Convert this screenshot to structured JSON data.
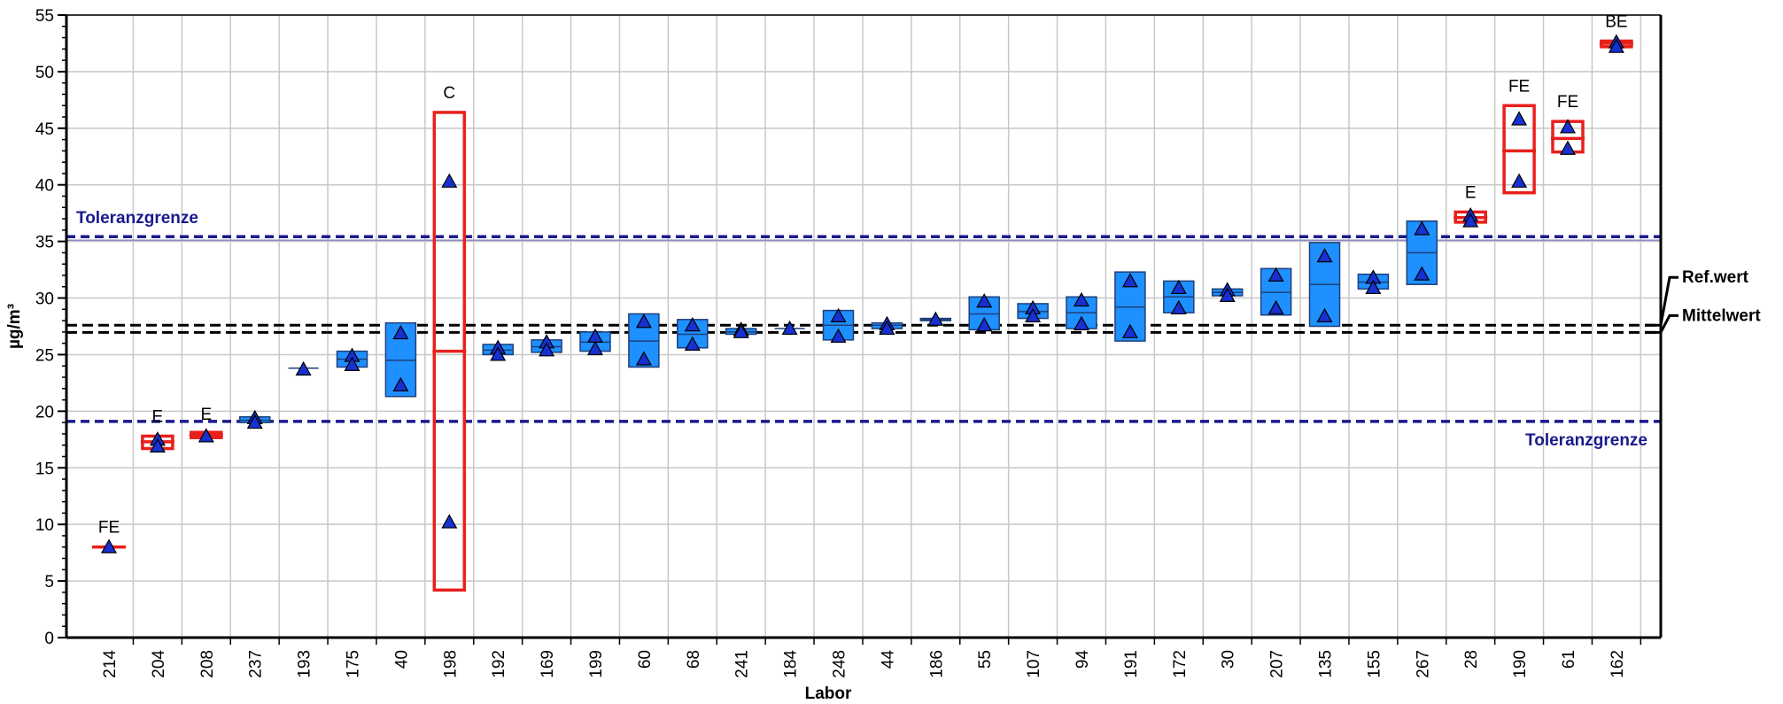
{
  "chart_data": {
    "type": "box",
    "xlabel": "Labor",
    "ylabel": "µg/m³",
    "ylim": [
      0,
      55
    ],
    "yticks": [
      0,
      5,
      10,
      15,
      20,
      25,
      30,
      35,
      40,
      45,
      50,
      55
    ],
    "grid": true,
    "colors": {
      "box_fill": "#1E90FF",
      "box_stroke": "#1F3F7A",
      "flagged": "#E8201C",
      "marker_fill": "#1730D0",
      "tolerance_line": "#1A1A8C",
      "reference_line": "#000000",
      "grid": "#C8C8C8"
    },
    "reference_lines": {
      "ref_wert": {
        "label": "Ref.wert",
        "value": 27.6
      },
      "mittelwert": {
        "label": "Mittelwert",
        "value": 27.2
      },
      "tolerance_upper": {
        "label": "Toleranzgrenze",
        "value": 35.3
      },
      "tolerance_lower": {
        "label": "Toleranzgrenze",
        "value": 19.1
      }
    },
    "labs": [
      {
        "label": "214",
        "low": 8.0,
        "high": 8.0,
        "mid": 8.0,
        "points": [
          8.0
        ],
        "flag": "FE",
        "flagged": true
      },
      {
        "label": "204",
        "low": 16.7,
        "high": 17.8,
        "mid": 17.3,
        "points": [
          17.5,
          16.9
        ],
        "flag": "E",
        "flagged": true
      },
      {
        "label": "208",
        "low": 17.8,
        "high": 18.0,
        "mid": 17.9,
        "points": [
          17.8
        ],
        "flag": "E",
        "flagged": true
      },
      {
        "label": "237",
        "low": 19.0,
        "high": 19.5,
        "mid": 19.2,
        "points": [
          19.4,
          19.0
        ],
        "flag": "",
        "flagged": false
      },
      {
        "label": "193",
        "low": 23.7,
        "high": 23.8,
        "mid": 23.8,
        "points": [
          23.7
        ],
        "flag": "",
        "flagged": false
      },
      {
        "label": "175",
        "low": 23.9,
        "high": 25.3,
        "mid": 24.6,
        "points": [
          24.9,
          24.1
        ],
        "flag": "",
        "flagged": false
      },
      {
        "label": "40",
        "low": 21.3,
        "high": 27.8,
        "mid": 24.5,
        "points": [
          26.9,
          22.3
        ],
        "flag": "",
        "flagged": false
      },
      {
        "label": "198",
        "low": 4.2,
        "high": 46.4,
        "mid": 25.3,
        "points": [
          40.3,
          10.2
        ],
        "flag": "C",
        "flagged": true
      },
      {
        "label": "192",
        "low": 25.0,
        "high": 25.9,
        "mid": 25.4,
        "points": [
          25.6,
          25.0
        ],
        "flag": "",
        "flagged": false
      },
      {
        "label": "169",
        "low": 25.2,
        "high": 26.3,
        "mid": 25.7,
        "points": [
          26.1,
          25.4
        ],
        "flag": "",
        "flagged": false
      },
      {
        "label": "199",
        "low": 25.3,
        "high": 27.0,
        "mid": 26.1,
        "points": [
          26.6,
          25.5
        ],
        "flag": "",
        "flagged": false
      },
      {
        "label": "60",
        "low": 23.9,
        "high": 28.6,
        "mid": 26.2,
        "points": [
          27.9,
          24.6
        ],
        "flag": "",
        "flagged": false
      },
      {
        "label": "68",
        "low": 25.6,
        "high": 28.1,
        "mid": 26.8,
        "points": [
          27.6,
          25.9
        ],
        "flag": "",
        "flagged": false
      },
      {
        "label": "241",
        "low": 26.8,
        "high": 27.3,
        "mid": 27.0,
        "points": [
          27.2,
          27.0
        ],
        "flag": "",
        "flagged": false
      },
      {
        "label": "184",
        "low": 27.3,
        "high": 27.4,
        "mid": 27.3,
        "points": [
          27.3
        ],
        "flag": "",
        "flagged": false
      },
      {
        "label": "248",
        "low": 26.3,
        "high": 28.9,
        "mid": 27.6,
        "points": [
          28.4,
          26.6
        ],
        "flag": "",
        "flagged": false
      },
      {
        "label": "44",
        "low": 27.3,
        "high": 27.8,
        "mid": 27.6,
        "points": [
          27.7,
          27.3
        ],
        "flag": "",
        "flagged": false
      },
      {
        "label": "186",
        "low": 28.0,
        "high": 28.2,
        "mid": 28.1,
        "points": [
          28.1
        ],
        "flag": "",
        "flagged": false
      },
      {
        "label": "55",
        "low": 27.2,
        "high": 30.1,
        "mid": 28.6,
        "points": [
          29.7,
          27.6
        ],
        "flag": "",
        "flagged": false
      },
      {
        "label": "107",
        "low": 28.2,
        "high": 29.5,
        "mid": 28.8,
        "points": [
          29.1,
          28.4
        ],
        "flag": "",
        "flagged": false
      },
      {
        "label": "94",
        "low": 27.3,
        "high": 30.1,
        "mid": 28.7,
        "points": [
          29.8,
          27.7
        ],
        "flag": "",
        "flagged": false
      },
      {
        "label": "191",
        "low": 26.2,
        "high": 32.3,
        "mid": 29.2,
        "points": [
          31.5,
          27.0
        ],
        "flag": "",
        "flagged": false
      },
      {
        "label": "172",
        "low": 28.7,
        "high": 31.5,
        "mid": 30.1,
        "points": [
          30.9,
          29.1
        ],
        "flag": "",
        "flagged": false
      },
      {
        "label": "30",
        "low": 30.2,
        "high": 30.8,
        "mid": 30.5,
        "points": [
          30.7,
          30.2
        ],
        "flag": "",
        "flagged": false
      },
      {
        "label": "207",
        "low": 28.5,
        "high": 32.6,
        "mid": 30.5,
        "points": [
          32.0,
          29.1
        ],
        "flag": "",
        "flagged": false
      },
      {
        "label": "135",
        "low": 27.5,
        "high": 34.9,
        "mid": 31.2,
        "points": [
          33.7,
          28.4
        ],
        "flag": "",
        "flagged": false
      },
      {
        "label": "155",
        "low": 30.8,
        "high": 32.1,
        "mid": 31.4,
        "points": [
          31.8,
          30.9
        ],
        "flag": "",
        "flagged": false
      },
      {
        "label": "267",
        "low": 31.2,
        "high": 36.8,
        "mid": 34.0,
        "points": [
          36.1,
          32.1
        ],
        "flag": "",
        "flagged": false
      },
      {
        "label": "28",
        "low": 36.7,
        "high": 37.6,
        "mid": 37.1,
        "points": [
          37.3,
          36.8
        ],
        "flag": "E",
        "flagged": true
      },
      {
        "label": "190",
        "low": 39.3,
        "high": 47.0,
        "mid": 43.0,
        "points": [
          45.8,
          40.3
        ],
        "flag": "FE",
        "flagged": true
      },
      {
        "label": "61",
        "low": 42.9,
        "high": 45.6,
        "mid": 44.1,
        "points": [
          45.1,
          43.2
        ],
        "flag": "FE",
        "flagged": true
      },
      {
        "label": "162",
        "low": 52.2,
        "high": 52.7,
        "mid": 52.5,
        "points": [
          52.6,
          52.2
        ],
        "flag": "BE",
        "flagged": true
      }
    ]
  }
}
